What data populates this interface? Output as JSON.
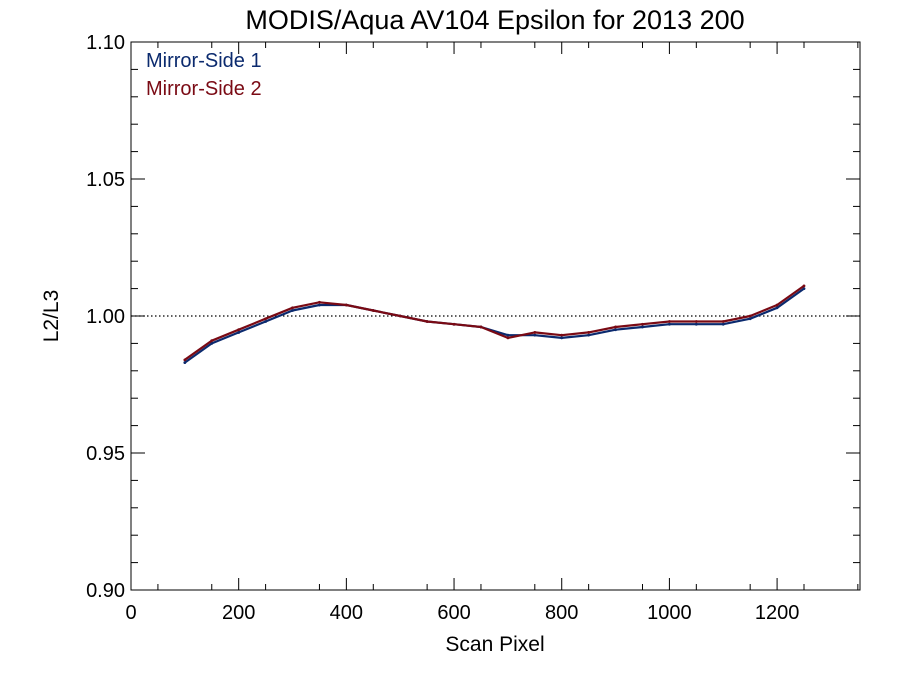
{
  "chart_data": {
    "type": "line",
    "title": "MODIS/Aqua AV104 Epsilon for 2013 200",
    "xlabel": "Scan Pixel",
    "ylabel": "L2/L3",
    "xlim": [
      0,
      1354
    ],
    "ylim": [
      0.9,
      1.1
    ],
    "x_ticks": [
      0,
      200,
      400,
      600,
      800,
      1000,
      1200
    ],
    "x_tick_labels": [
      "0",
      "200",
      "400",
      "600",
      "800",
      "1000",
      "1200"
    ],
    "y_ticks": [
      0.9,
      0.95,
      1.0,
      1.05,
      1.1
    ],
    "y_tick_labels": [
      "0.90",
      "0.95",
      "1.00",
      "1.05",
      "1.10"
    ],
    "reference_line": {
      "y": 1.0,
      "style": "dotted"
    },
    "legend_placement": "top-left",
    "x": [
      100,
      150,
      200,
      250,
      300,
      350,
      400,
      450,
      500,
      550,
      600,
      650,
      700,
      750,
      800,
      850,
      900,
      950,
      1000,
      1050,
      1100,
      1150,
      1200,
      1250
    ],
    "series": [
      {
        "name": "Mirror-Side 1",
        "color": "#0b2a6e",
        "values": [
          0.983,
          0.99,
          0.994,
          0.998,
          1.002,
          1.004,
          1.004,
          1.002,
          1.0,
          0.998,
          0.997,
          0.996,
          0.993,
          0.993,
          0.992,
          0.993,
          0.995,
          0.996,
          0.997,
          0.997,
          0.997,
          0.999,
          1.003,
          1.01
        ]
      },
      {
        "name": "Mirror-Side 2",
        "color": "#7a0a14",
        "values": [
          0.984,
          0.991,
          0.995,
          0.999,
          1.003,
          1.005,
          1.004,
          1.002,
          1.0,
          0.998,
          0.997,
          0.996,
          0.992,
          0.994,
          0.993,
          0.994,
          0.996,
          0.997,
          0.998,
          0.998,
          0.998,
          1.0,
          1.004,
          1.011
        ]
      }
    ]
  }
}
